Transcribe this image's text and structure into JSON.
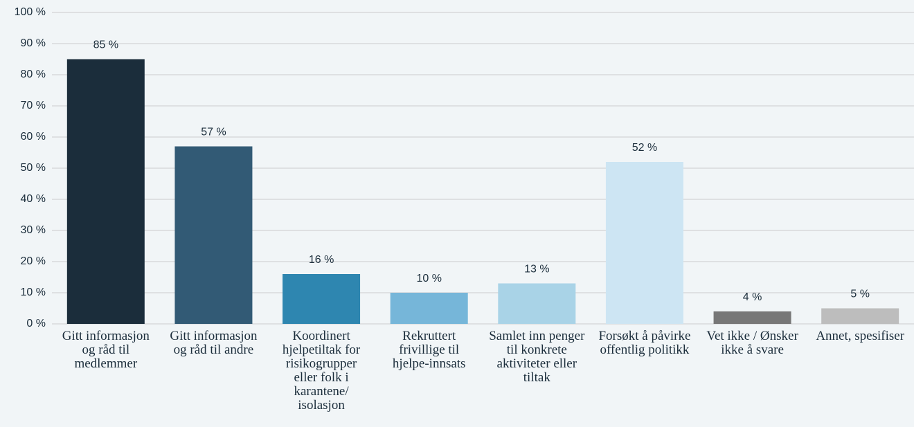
{
  "chart_data": {
    "type": "bar",
    "categories": [
      "Gitt informasjon og råd til medlemmer",
      "Gitt informasjon og råd til andre",
      "Koordinert hjelpetiltak for risikogrupper eller folk i karantene/ isolasjon",
      "Rekruttert frivillige til hjelpe-innsats",
      "Samlet inn penger til konkrete aktiviteter eller tiltak",
      "Forsøkt å påvirke offentlig politikk",
      "Vet ikke / Ønsker ikke å svare",
      "Annet, spesifiser"
    ],
    "values": [
      85,
      57,
      16,
      10,
      13,
      52,
      4,
      5
    ],
    "value_labels": [
      "85 %",
      "57 %",
      "16 %",
      "10 %",
      "13 %",
      "52 %",
      "4 %",
      "5 %"
    ],
    "colors": [
      "#1b2d3b",
      "#325a75",
      "#2e86b0",
      "#76b6d9",
      "#a9d3e7",
      "#cde5f3",
      "#777777",
      "#bdbdbd"
    ],
    "ylim": [
      0,
      100
    ],
    "yticks": [
      {
        "value": 0,
        "label": "0 %"
      },
      {
        "value": 10,
        "label": "10 %"
      },
      {
        "value": 20,
        "label": "20 %"
      },
      {
        "value": 30,
        "label": "30 %"
      },
      {
        "value": 40,
        "label": "40 %"
      },
      {
        "value": 50,
        "label": "50 %"
      },
      {
        "value": 60,
        "label": "60 %"
      },
      {
        "value": 70,
        "label": "70 %"
      },
      {
        "value": 80,
        "label": "80 %"
      },
      {
        "value": 90,
        "label": "90 %"
      },
      {
        "value": 100,
        "label": "100 %"
      }
    ],
    "grid": true
  }
}
